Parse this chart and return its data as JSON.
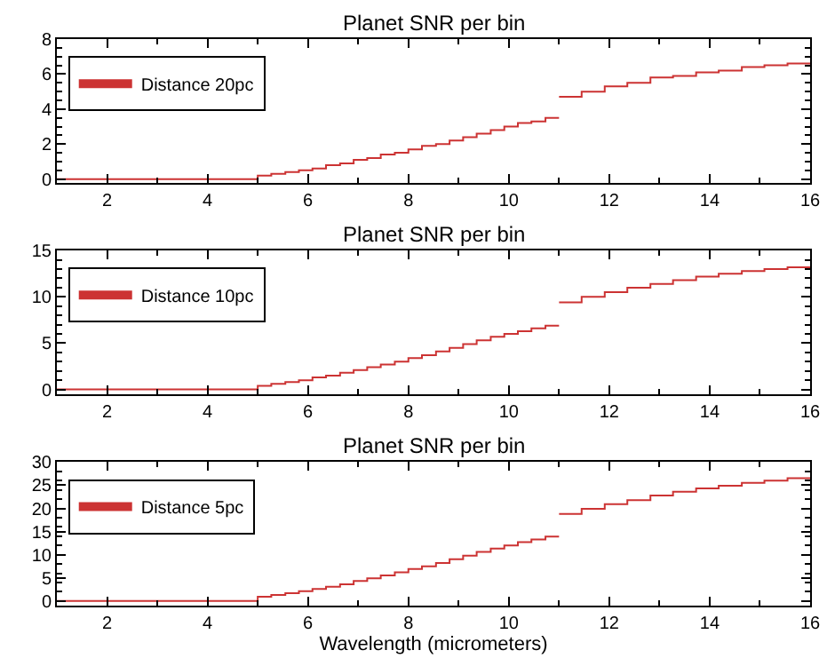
{
  "chart_data": [
    {
      "type": "step",
      "title": "Planet SNR per bin",
      "xlim": [
        1,
        16
      ],
      "xticks": [
        2,
        4,
        6,
        8,
        10,
        12,
        14,
        16
      ],
      "ylim": [
        -0.2,
        8
      ],
      "yticks": [
        0,
        2,
        4,
        6,
        8
      ],
      "legend": "top left",
      "series": [
        {
          "name": "Distance 20pc",
          "color": "#cc3333",
          "x": [
            1,
            5,
            5.27,
            5.55,
            5.82,
            6.09,
            6.36,
            6.64,
            6.91,
            7.18,
            7.45,
            7.73,
            8,
            8.27,
            8.55,
            8.82,
            9.09,
            9.36,
            9.64,
            9.91,
            10.18,
            10.45,
            10.73,
            11
          ],
          "values": [
            0,
            0.2,
            0.3,
            0.4,
            0.5,
            0.6,
            0.8,
            0.9,
            1.1,
            1.2,
            1.4,
            1.5,
            1.7,
            1.9,
            2.0,
            2.2,
            2.4,
            2.6,
            2.8,
            3.0,
            3.2,
            3.3,
            3.5,
            3.5
          ]
        },
        {
          "color": "#cc3333",
          "x": [
            11,
            11.45,
            11.91,
            12.36,
            12.82,
            13.27,
            13.73,
            14.18,
            14.64,
            15.09,
            15.55,
            16
          ],
          "values": [
            4.7,
            5.0,
            5.3,
            5.5,
            5.8,
            5.9,
            6.1,
            6.2,
            6.4,
            6.5,
            6.6,
            6.6
          ]
        }
      ]
    },
    {
      "type": "step",
      "title": "Planet SNR per bin",
      "xlim": [
        1,
        16
      ],
      "xticks": [
        2,
        4,
        6,
        8,
        10,
        12,
        14,
        16
      ],
      "ylim": [
        -0.5,
        15
      ],
      "yticks": [
        0,
        5,
        10,
        15
      ],
      "legend": "top left",
      "series": [
        {
          "name": "Distance 10pc",
          "color": "#cc3333",
          "x": [
            1,
            5,
            5.27,
            5.55,
            5.82,
            6.09,
            6.36,
            6.64,
            6.91,
            7.18,
            7.45,
            7.73,
            8,
            8.27,
            8.55,
            8.82,
            9.09,
            9.36,
            9.64,
            9.91,
            10.18,
            10.45,
            10.73,
            11
          ],
          "values": [
            0,
            0.4,
            0.6,
            0.8,
            1.0,
            1.3,
            1.5,
            1.8,
            2.1,
            2.4,
            2.7,
            3.0,
            3.4,
            3.7,
            4.1,
            4.5,
            4.9,
            5.3,
            5.7,
            6.0,
            6.3,
            6.6,
            6.9,
            6.9
          ]
        },
        {
          "color": "#cc3333",
          "x": [
            11,
            11.45,
            11.91,
            12.36,
            12.82,
            13.27,
            13.73,
            14.18,
            14.64,
            15.09,
            15.55,
            16
          ],
          "values": [
            9.4,
            10.0,
            10.5,
            11.0,
            11.4,
            11.8,
            12.2,
            12.5,
            12.8,
            13.0,
            13.2,
            13.2
          ]
        }
      ]
    },
    {
      "type": "step",
      "title": "Planet SNR per bin",
      "xlabel": "Wavelength (micrometers)",
      "xlim": [
        1,
        16
      ],
      "xticks": [
        2,
        4,
        6,
        8,
        10,
        12,
        14,
        16
      ],
      "ylim": [
        -1,
        30
      ],
      "yticks": [
        0,
        5,
        10,
        15,
        20,
        25,
        30
      ],
      "legend": "top left",
      "series": [
        {
          "name": "Distance 5pc",
          "color": "#cc3333",
          "x": [
            1,
            5,
            5.27,
            5.55,
            5.82,
            6.09,
            6.36,
            6.64,
            6.91,
            7.18,
            7.45,
            7.73,
            8,
            8.27,
            8.55,
            8.82,
            9.09,
            9.36,
            9.64,
            9.91,
            10.18,
            10.45,
            10.73,
            11
          ],
          "values": [
            0,
            0.9,
            1.3,
            1.7,
            2.1,
            2.6,
            3.1,
            3.6,
            4.3,
            4.9,
            5.5,
            6.2,
            6.9,
            7.5,
            8.2,
            9.0,
            9.8,
            10.6,
            11.3,
            12.0,
            12.7,
            13.3,
            13.9,
            13.9
          ]
        },
        {
          "color": "#cc3333",
          "x": [
            11,
            11.45,
            11.91,
            12.36,
            12.82,
            13.27,
            13.73,
            14.18,
            14.64,
            15.09,
            15.55,
            16
          ],
          "values": [
            18.8,
            19.9,
            20.9,
            21.8,
            22.8,
            23.6,
            24.3,
            24.9,
            25.5,
            26.0,
            26.5,
            26.5
          ]
        }
      ]
    }
  ]
}
